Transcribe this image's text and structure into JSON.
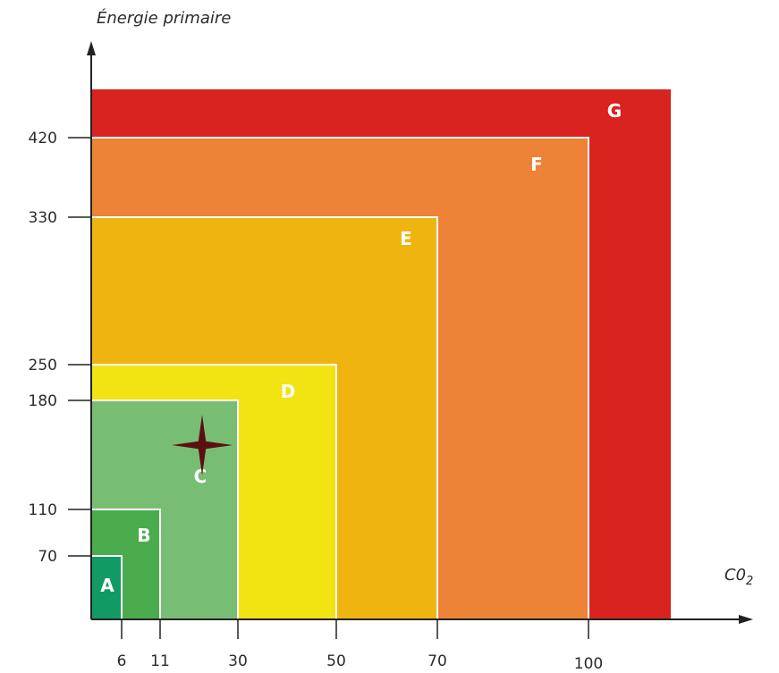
{
  "chart_data": {
    "type": "diagram",
    "ylabel": "Énergie primaire",
    "xlabel_base": "C0",
    "xlabel_sub": "2",
    "x_ticks": [
      "6",
      "11",
      "30",
      "50",
      "70",
      "100"
    ],
    "y_ticks": [
      "70",
      "110",
      "180",
      "250",
      "330",
      "420"
    ],
    "classes": [
      {
        "label": "G",
        "co2_max": null,
        "energy_max": null,
        "color": "#d8231f"
      },
      {
        "label": "F",
        "co2_max": 100,
        "energy_max": 420,
        "color": "#ec8337"
      },
      {
        "label": "E",
        "co2_max": 70,
        "energy_max": 330,
        "color": "#efb410"
      },
      {
        "label": "D",
        "co2_max": 50,
        "energy_max": 250,
        "color": "#f2e313"
      },
      {
        "label": "C",
        "co2_max": 30,
        "energy_max": 180,
        "color": "#78bd74"
      },
      {
        "label": "B",
        "co2_max": 11,
        "energy_max": 110,
        "color": "#4aac4c"
      },
      {
        "label": "A",
        "co2_max": 6,
        "energy_max": 70,
        "color": "#119a64"
      }
    ],
    "marker": {
      "shape": "four-point-star",
      "color": "#5b1010",
      "class": "C"
    }
  }
}
